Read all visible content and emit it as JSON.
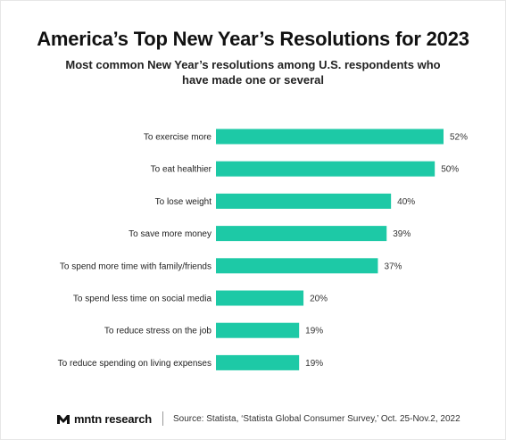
{
  "title": "America’s Top New Year’s Resolutions for 2023",
  "subtitle": "Most common New Year’s resolutions among U.S. respondents who have made one or several",
  "colors": {
    "bar": "#1dc9a6",
    "text": "#111111"
  },
  "chart_data": {
    "type": "bar",
    "orientation": "horizontal",
    "categories": [
      "To exercise more",
      "To eat healthier",
      "To lose weight",
      "To save more money",
      "To spend more time with family/friends",
      "To spend less time on social media",
      "To reduce stress on the job",
      "To reduce spending on living expenses"
    ],
    "values": [
      52,
      50,
      40,
      39,
      37,
      20,
      19,
      19
    ],
    "value_labels": [
      "52%",
      "50%",
      "40%",
      "39%",
      "37%",
      "20%",
      "19%",
      "19%"
    ],
    "unit": "%",
    "xlim": [
      0,
      52
    ],
    "grid": false,
    "legend": "none"
  },
  "footer": {
    "brand_name": "mntn research",
    "brand_icon": "mntn-logo-icon",
    "source": "Source: Statista, ‘Statista Global Consumer Survey,’ Oct. 25-Nov.2, 2022"
  }
}
